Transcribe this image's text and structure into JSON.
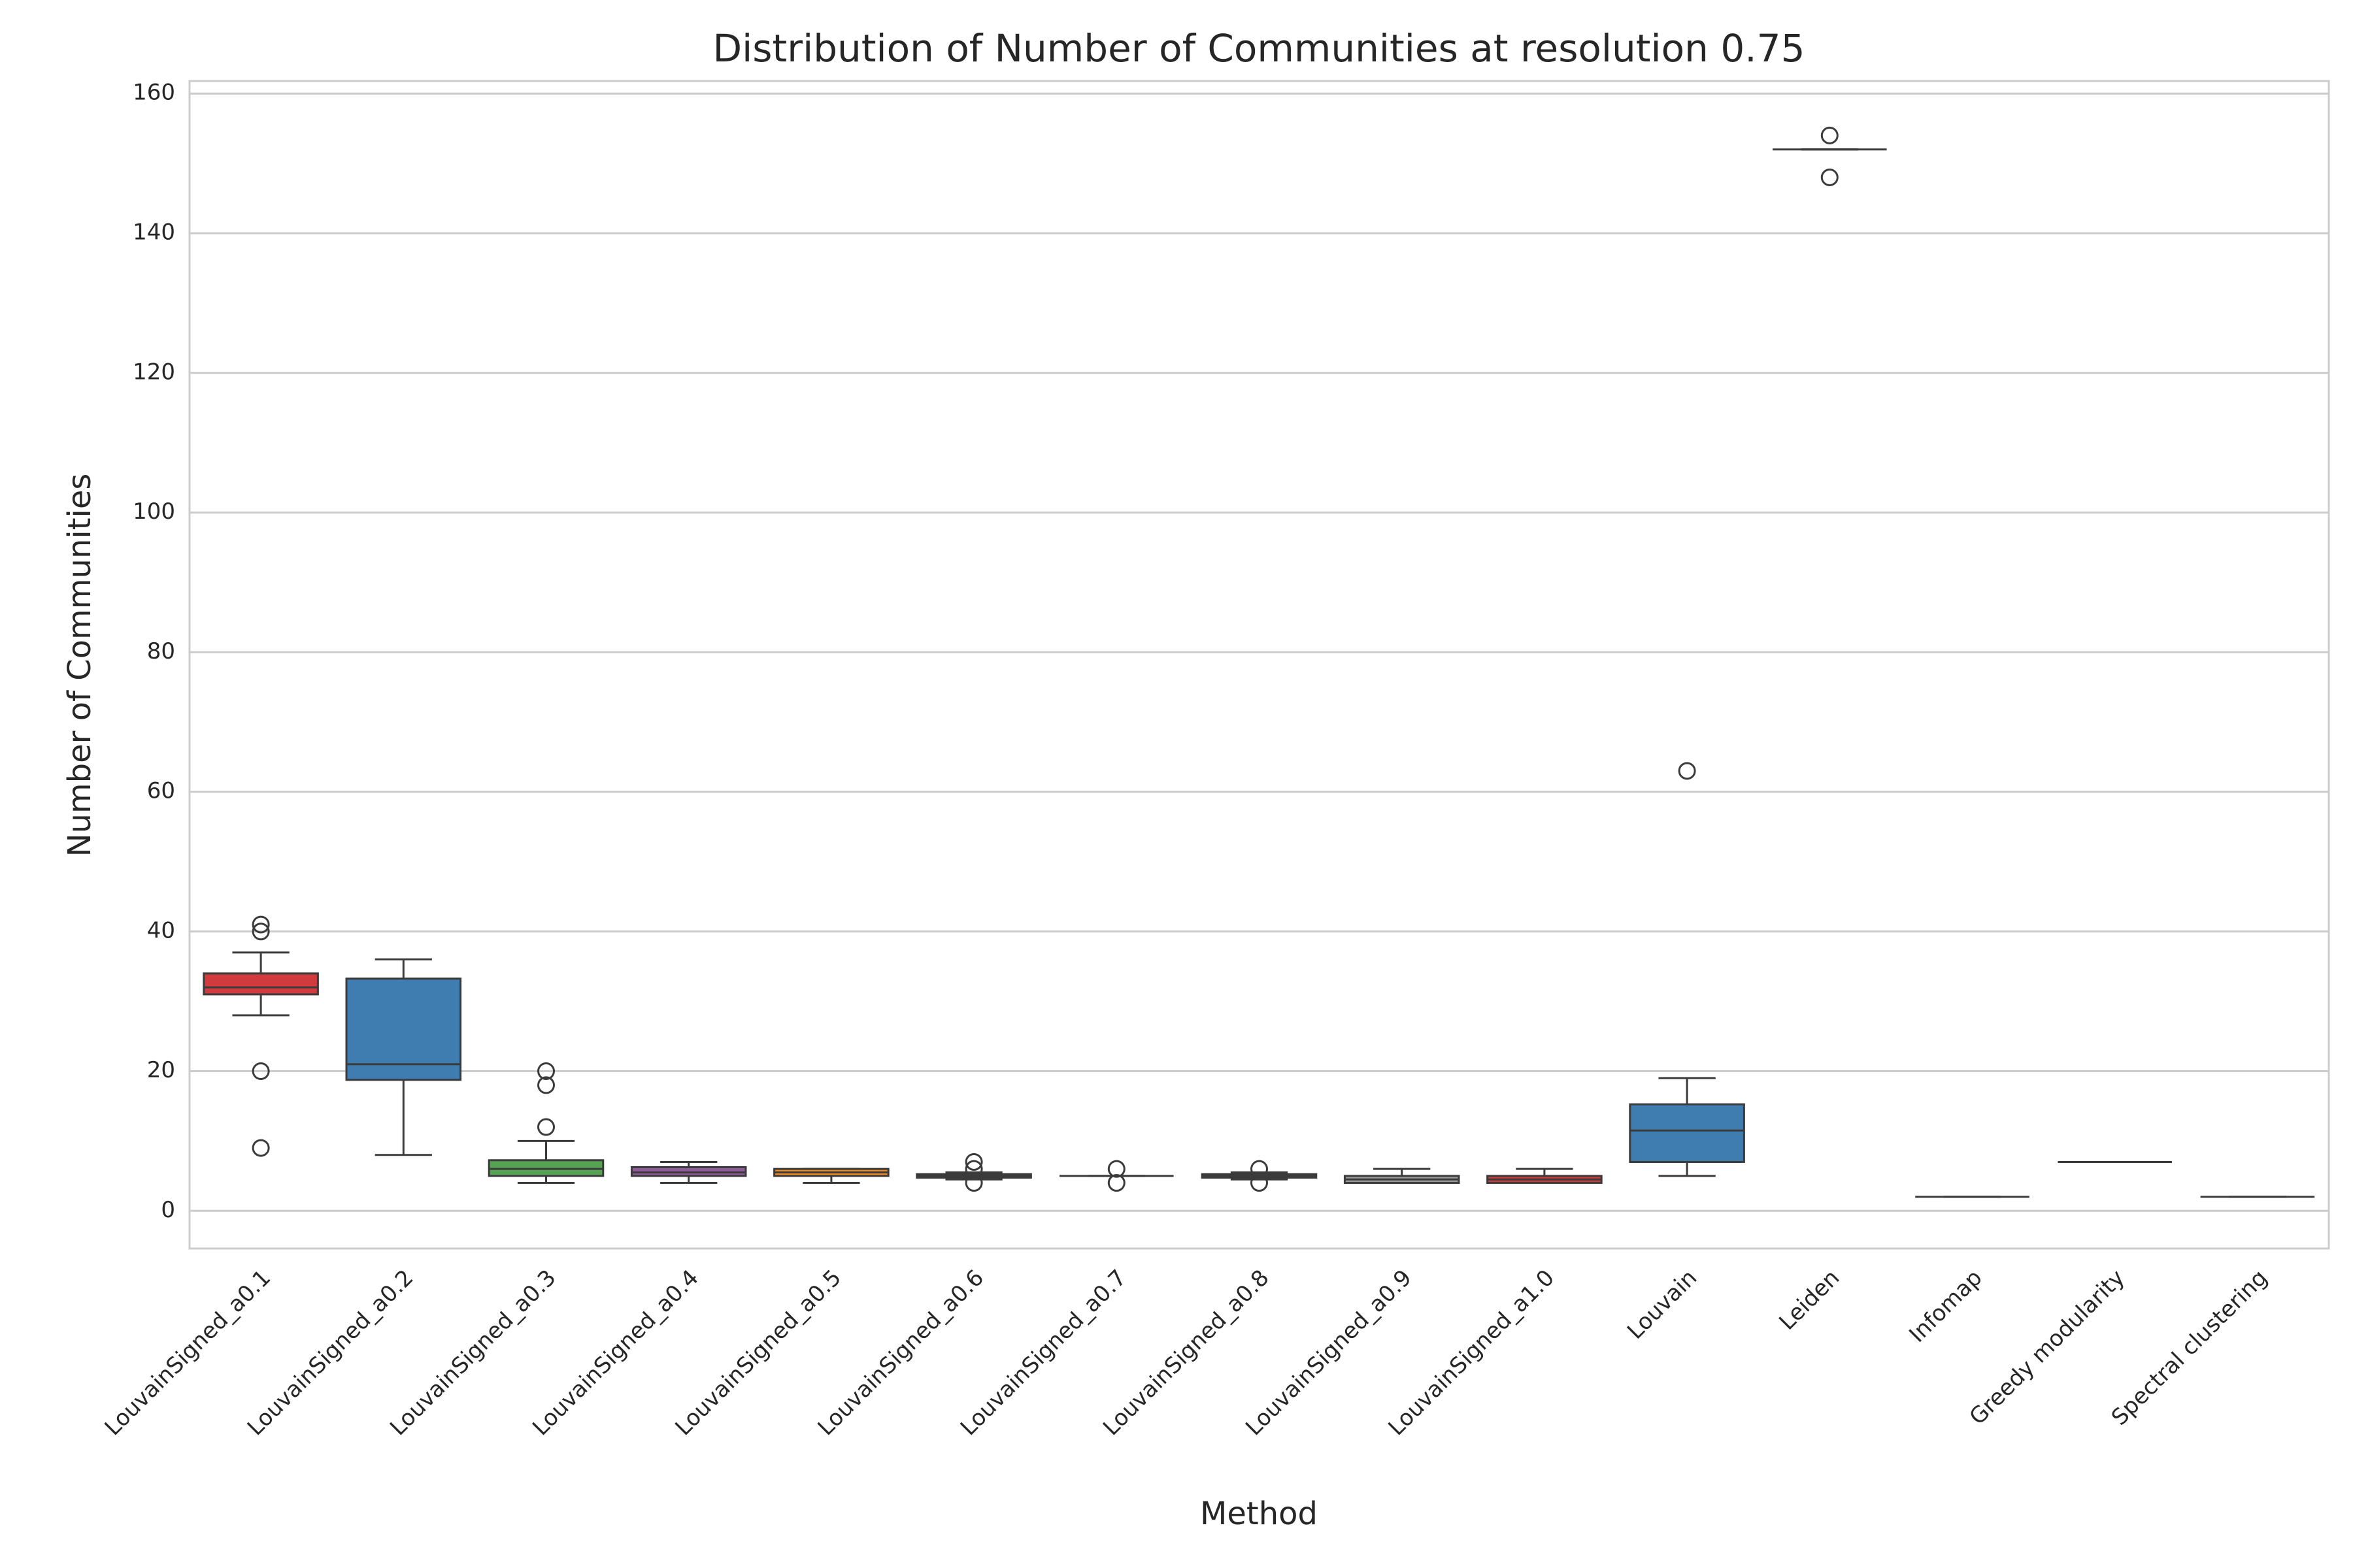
{
  "chart_data": {
    "type": "box",
    "title": "Distribution of Number of Communities at resolution 0.75",
    "x_label": "Method",
    "y_label": "Number of Communities",
    "categories": [
      "LouvainSigned_a0.1",
      "LouvainSigned_a0.2",
      "LouvainSigned_a0.3",
      "LouvainSigned_a0.4",
      "LouvainSigned_a0.5",
      "LouvainSigned_a0.6",
      "LouvainSigned_a0.7",
      "LouvainSigned_a0.8",
      "LouvainSigned_a0.9",
      "LouvainSigned_a1.0",
      "Louvain",
      "Leiden",
      "Infomap",
      "Greedy modularity",
      "Spectral clustering"
    ],
    "boxes": [
      {
        "min": 28,
        "q1": 31,
        "median": 32,
        "q3": 34,
        "max": 37,
        "outliers": [
          41,
          40,
          20,
          9
        ],
        "color": "#d13b3d"
      },
      {
        "min": 8,
        "q1": 18.75,
        "median": 21,
        "q3": 33.25,
        "max": 36,
        "outliers": [],
        "color": "#3f7db1"
      },
      {
        "min": 4,
        "q1": 5,
        "median": 6,
        "q3": 7.25,
        "max": 10,
        "outliers": [
          12,
          18,
          20
        ],
        "color": "#55a353"
      },
      {
        "min": 4,
        "q1": 5,
        "median": 5.5,
        "q3": 6.25,
        "max": 7,
        "outliers": [],
        "color": "#8d5a9a"
      },
      {
        "min": 4,
        "q1": 5,
        "median": 5.5,
        "q3": 6,
        "max": 6,
        "outliers": [],
        "color": "#f08a1c"
      },
      {
        "min": 4.5,
        "q1": 4.75,
        "median": 5,
        "q3": 5.25,
        "max": 5.5,
        "outliers": [
          4,
          6,
          7
        ],
        "color": "#f0e040"
      },
      {
        "min": 5,
        "q1": 5,
        "median": 5,
        "q3": 5,
        "max": 5,
        "outliers": [
          4,
          6
        ],
        "color": "#a45a2f"
      },
      {
        "min": 4.5,
        "q1": 4.75,
        "median": 5,
        "q3": 5.25,
        "max": 5.5,
        "outliers": [
          4,
          6
        ],
        "color": "#e07fb8"
      },
      {
        "min": 4,
        "q1": 4,
        "median": 4.5,
        "q3": 5,
        "max": 6,
        "outliers": [],
        "color": "#999999"
      },
      {
        "min": 4,
        "q1": 4,
        "median": 4.5,
        "q3": 5,
        "max": 6,
        "outliers": [],
        "color": "#d13b3d"
      },
      {
        "min": 5,
        "q1": 7,
        "median": 11.5,
        "q3": 15.25,
        "max": 19,
        "outliers": [
          63
        ],
        "color": "#3f7db1"
      },
      {
        "min": 152,
        "q1": 152,
        "median": 152,
        "q3": 152,
        "max": 152,
        "outliers": [
          154,
          148
        ],
        "color": "#55a353"
      },
      {
        "min": 2,
        "q1": 2,
        "median": 2,
        "q3": 2,
        "max": 2,
        "outliers": [],
        "color": "#8d5a9a"
      },
      {
        "min": 7,
        "q1": 7,
        "median": 7,
        "q3": 7,
        "max": 7,
        "outliers": [],
        "color": "#f08a1c"
      },
      {
        "min": 2,
        "q1": 2,
        "median": 2,
        "q3": 2,
        "max": 2,
        "outliers": [],
        "color": "#f0e040"
      }
    ],
    "ylim": [
      -5.4,
      161.8
    ],
    "yticks": [
      0,
      20,
      40,
      60,
      80,
      100,
      120,
      140,
      160
    ],
    "grid": true
  }
}
